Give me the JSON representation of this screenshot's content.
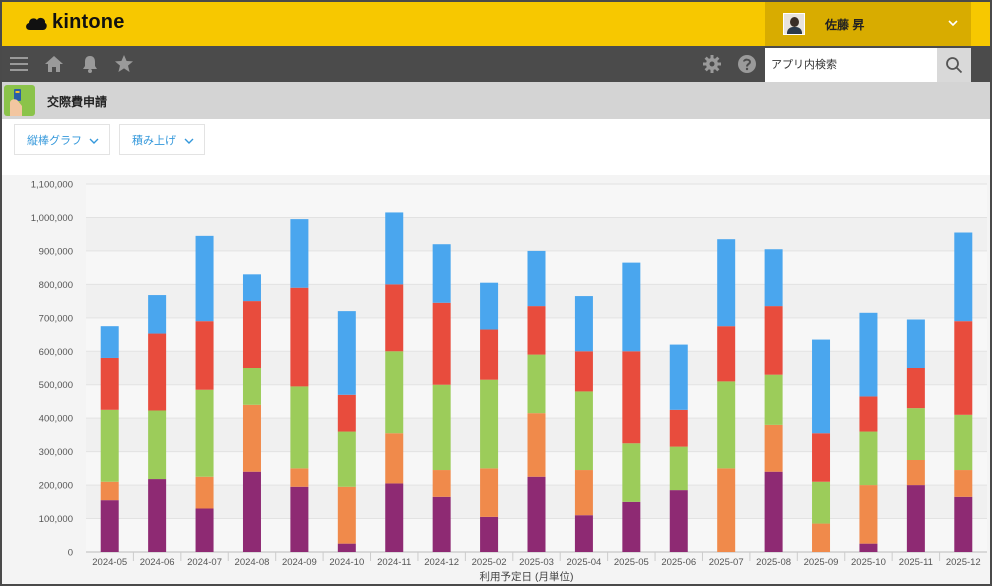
{
  "header": {
    "logo_text": "kintone",
    "user_name": "佐藤 昇"
  },
  "navbar": {
    "search_placeholder": "アプリ内検索"
  },
  "app": {
    "title": "交際費申請"
  },
  "controls": {
    "chart_type": "縦棒グラフ",
    "stack_mode": "積み上げ"
  },
  "colors": {
    "header_bg": "#f7c800",
    "nav_bg": "#4b4b4b",
    "accent": "#3498db"
  },
  "chart_data": {
    "type": "bar",
    "stacked": true,
    "xlabel": "利用予定日 (月単位)",
    "ylabel": "",
    "ylim": [
      0,
      1100000
    ],
    "yticks": [
      "0",
      "100,000",
      "200,000",
      "300,000",
      "400,000",
      "500,000",
      "600,000",
      "700,000",
      "800,000",
      "900,000",
      "1,000,000",
      "1,100,000"
    ],
    "categories": [
      "2024-05",
      "2024-06",
      "2024-07",
      "2024-08",
      "2024-09",
      "2024-10",
      "2024-11",
      "2024-12",
      "2025-02",
      "2025-03",
      "2025-04",
      "2025-05",
      "2025-06",
      "2025-07",
      "2025-08",
      "2025-09",
      "2025-10",
      "2025-11",
      "2025-12"
    ],
    "series": [
      {
        "color": "#8e2a73",
        "values": [
          155000,
          218000,
          130000,
          240000,
          195000,
          25000,
          205000,
          165000,
          105000,
          225000,
          110000,
          150000,
          185000,
          0,
          240000,
          0,
          25000,
          200000,
          165000
        ]
      },
      {
        "color": "#f08a4b",
        "values": [
          55000,
          0,
          95000,
          200000,
          55000,
          170000,
          150000,
          80000,
          145000,
          190000,
          135000,
          0,
          0,
          250000,
          140000,
          85000,
          175000,
          75000,
          80000
        ]
      },
      {
        "color": "#9ccc5a",
        "values": [
          215000,
          205000,
          260000,
          110000,
          245000,
          165000,
          245000,
          255000,
          265000,
          175000,
          235000,
          175000,
          130000,
          260000,
          150000,
          125000,
          160000,
          155000,
          165000
        ]
      },
      {
        "color": "#e84c3d",
        "values": [
          155000,
          230000,
          205000,
          200000,
          295000,
          110000,
          200000,
          245000,
          150000,
          145000,
          120000,
          275000,
          110000,
          165000,
          205000,
          145000,
          105000,
          120000,
          280000
        ]
      },
      {
        "color": "#4aa6ee",
        "values": [
          95000,
          115000,
          255000,
          80000,
          205000,
          250000,
          215000,
          175000,
          140000,
          165000,
          165000,
          265000,
          195000,
          260000,
          170000,
          280000,
          250000,
          145000,
          265000
        ]
      }
    ]
  }
}
